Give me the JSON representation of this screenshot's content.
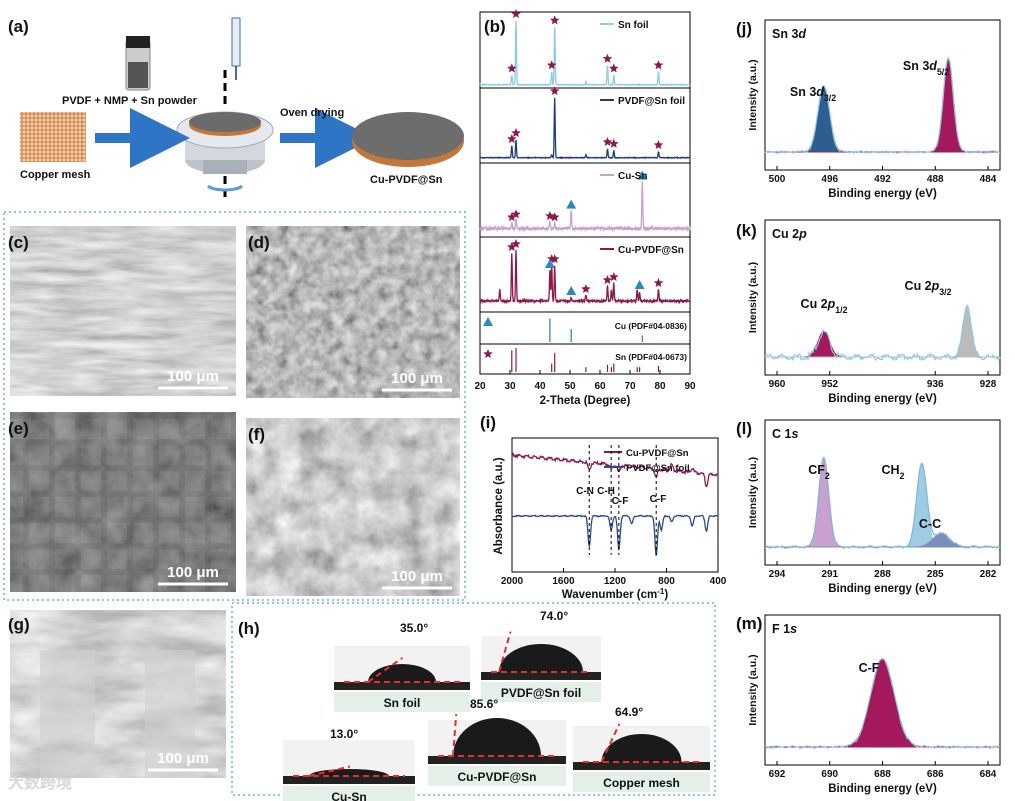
{
  "panel_a": {
    "label": "(a)",
    "precursor": "PVDF + NMP + Sn powder",
    "mesh": "Copper mesh",
    "drying": "Oven drying",
    "product": "Cu-PVDF@Sn"
  },
  "sem": [
    {
      "label": "(c)",
      "scale": "100 μm"
    },
    {
      "label": "(d)",
      "scale": "100 μm"
    },
    {
      "label": "(e)",
      "scale": "100 μm"
    },
    {
      "label": "(f)",
      "scale": "100 μm"
    },
    {
      "label": "(g)",
      "scale": "100 μm"
    }
  ],
  "panel_b": {
    "label": "(b)",
    "xlabel": "2-Theta (Degree)",
    "xticks": [
      "20",
      "30",
      "40",
      "50",
      "60",
      "70",
      "80",
      "90"
    ],
    "traces": [
      "Sn foil",
      "PVDF@Sn foil",
      "Cu-Sn",
      "Cu-PVDF@Sn"
    ],
    "references": [
      "Cu (PDF#04-0836)",
      "Sn (PDF#04-0673)"
    ]
  },
  "panel_i": {
    "label": "(i)",
    "ylabel": "Absorbance (a.u.)",
    "xlabel": {
      "text": "Wavenumber (cm",
      "sup": "-1",
      "end": ")"
    },
    "xticks": [
      "2000",
      "1600",
      "1200",
      "800",
      "400"
    ],
    "legend": [
      "Cu-PVDF@Sn",
      "PVDF@Sn foil"
    ],
    "bands": [
      "C-N",
      "C-H",
      "C-F",
      "C-F"
    ]
  },
  "panel_h": {
    "label": "(h)",
    "samples": [
      {
        "name": "Sn foil",
        "angle": "35.0°"
      },
      {
        "name": "PVDF@Sn foil",
        "angle": "74.0°"
      },
      {
        "name": "Cu-Sn",
        "angle": "13.0°"
      },
      {
        "name": "Cu-PVDF@Sn",
        "angle": "85.6°"
      },
      {
        "name": "Copper mesh",
        "angle": "64.9°"
      }
    ]
  },
  "xps": [
    {
      "label": "(j)",
      "title": {
        "text": "Sn 3",
        "ital": "d"
      },
      "ylabel": "Intensity (a.u.)",
      "xlabel": "Binding energy (eV)",
      "xticks": [
        "500",
        "496",
        "492",
        "488",
        "484"
      ],
      "peaks": [
        {
          "text": "Sn 3",
          "ital": "d",
          "sub": "3/2"
        },
        {
          "text": "Sn 3",
          "ital": "d",
          "sub": "5/2"
        }
      ]
    },
    {
      "label": "(k)",
      "title": {
        "text": "Cu 2",
        "ital": "p"
      },
      "ylabel": "Intensity (a.u.)",
      "xlabel": "Binding energy (eV)",
      "xticks": [
        "960",
        "952",
        "936",
        "928"
      ],
      "peaks": [
        {
          "text": "Cu 2",
          "ital": "p",
          "sub": "1/2"
        },
        {
          "text": "Cu 2",
          "ital": "p",
          "sub": "3/2"
        }
      ]
    },
    {
      "label": "(l)",
      "title": {
        "text": "C 1",
        "ital": "s"
      },
      "ylabel": "Intensity (a.u.)",
      "xlabel": "Binding energy (eV)",
      "xticks": [
        "294",
        "291",
        "288",
        "285",
        "282"
      ],
      "peaks": [
        {
          "text": "CF",
          "sub": "2"
        },
        {
          "text": "CH",
          "sub": "2"
        },
        {
          "text": "C-C"
        }
      ]
    },
    {
      "label": "(m)",
      "title": {
        "text": "F 1",
        "ital": "s"
      },
      "ylabel": "Intensity (a.u.)",
      "xlabel": "Binding energy (eV)",
      "xticks": [
        "692",
        "690",
        "688",
        "686",
        "684"
      ],
      "peaks": [
        {
          "text": "C-F"
        }
      ]
    }
  ],
  "watermark": "大数跨境"
}
